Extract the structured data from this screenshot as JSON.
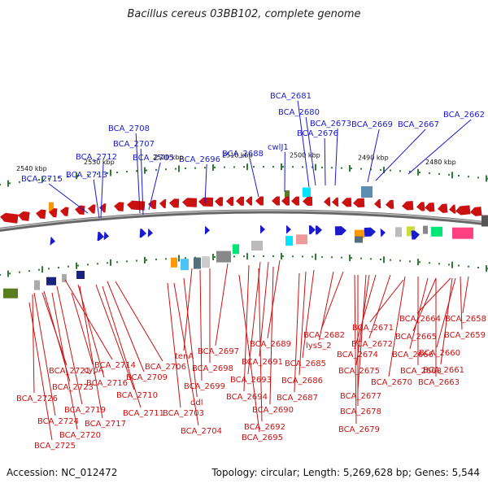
{
  "title": "Bacillus cereus 03BB102, complete genome",
  "footer": {
    "accession": "Accession: NC_012472",
    "summary": "Topology: circular; Length: 5,269,628 bp; Genes: 5,544"
  },
  "colors": {
    "forward": "#1a1acc",
    "reverse": "#cc1111",
    "backbone": "#888888",
    "tick": "#2e7d32"
  },
  "scale_labels": [
    "2540 kbp",
    "2530 kbp",
    "2520 kbp",
    "2510 kbp",
    "2500 kbp",
    "2490 kbp",
    "2480 kbp"
  ],
  "forward_labels": [
    "BCA_2681",
    "BCA_2680",
    "BCA_2708",
    "BCA_2673",
    "BCA_2669",
    "BCA_2667",
    "BCA_2662",
    "BCA_2676",
    "BCA_2707",
    "BCA_2712",
    "BCA_2705",
    "BCA_2696",
    "BCA_2688",
    "cwlJ1",
    "BCA_2713",
    "BCA_2715"
  ],
  "reverse_labels": [
    "BCA_2658",
    "BCA_2664",
    "BCA_2659",
    "BCA_2665",
    "BCA_2671",
    "BCA_2660",
    "BCA_2666",
    "BCA_2682",
    "BCA_2672",
    "BCA_2689",
    "lysS_2",
    "BCA_2674",
    "BCA_2697",
    "tenA",
    "BCA_2691",
    "BCA_2685",
    "BCA_2668",
    "BCA_2661",
    "BCA_2714",
    "BCA_2706",
    "BCA_2698",
    "BCA_2721",
    "BCA_2709",
    "BCA_2675",
    "BCA_2670",
    "BCA_2663",
    "BCA_2693",
    "BCA_2686",
    "cypA",
    "BCA_2716",
    "BCA_2699",
    "BCA_2723",
    "BCA_2710",
    "BCA_2694",
    "BCA_2687",
    "BCA_2677",
    "BCA_2726",
    "ddl",
    "BCA_2690",
    "BCA_2719",
    "BCA_2711",
    "BCA_2678",
    "BCA_2703",
    "BCA_2724",
    "BCA_2717",
    "BCA_2692",
    "BCA_2704",
    "BCA_2679",
    "BCA_2720",
    "BCA_2695",
    "BCA_2725"
  ]
}
